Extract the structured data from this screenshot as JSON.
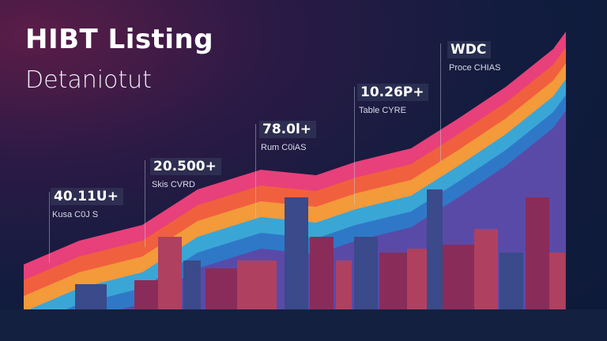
{
  "header": {
    "title": "HIBT Listing",
    "subtitle": "Detaniotut"
  },
  "callouts": [
    {
      "value": "40.11U+",
      "label": "Kusa C0J S"
    },
    {
      "value": "20.500+",
      "label": "Skis CVRD"
    },
    {
      "value": "78.0l+",
      "label": "Rum C0iAS"
    },
    {
      "value": "10.26P+",
      "label": "Table CYRE"
    },
    {
      "value": "WDC",
      "label": "Proce CHIAS"
    }
  ],
  "colors": {
    "background": "#111c3e",
    "bands": [
      "#e8407a",
      "#f0603e",
      "#f39a3a",
      "#3aa6d6",
      "#2f78c8",
      "#5a4aa8"
    ],
    "buildings": "#8a2c5a"
  }
}
